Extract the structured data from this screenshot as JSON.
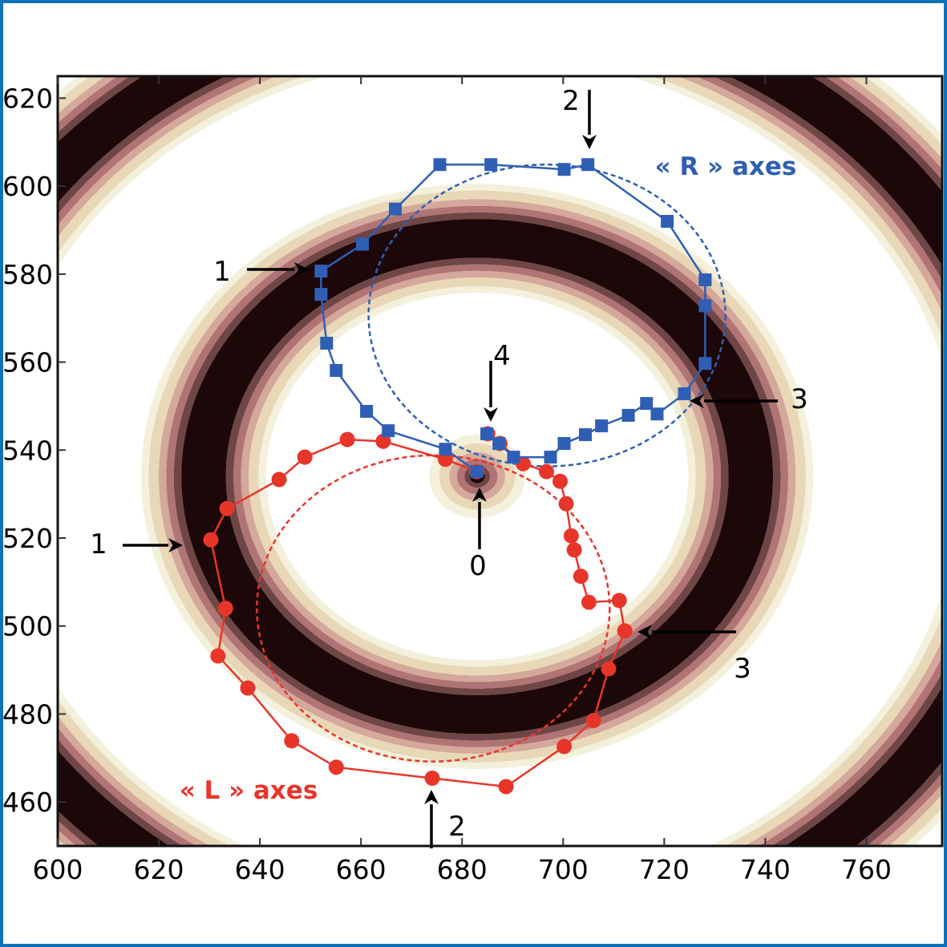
{
  "chart_data": {
    "type": "scatter",
    "title": "",
    "xlabel": "",
    "ylabel": "",
    "xlim": [
      600,
      775
    ],
    "ylim": [
      450,
      625
    ],
    "x_ticks": [
      600,
      620,
      640,
      660,
      680,
      700,
      720,
      740,
      760
    ],
    "y_ticks": [
      460,
      480,
      500,
      520,
      540,
      560,
      580,
      600,
      620
    ],
    "grid": false,
    "background": {
      "type": "contour-rings",
      "center": [
        683,
        534
      ],
      "dark_ring_radii": [
        0,
        54,
        108
      ],
      "colors": [
        "#1c0808",
        "#6e4646",
        "#b07474",
        "#d4a89a",
        "#e8d8b8",
        "#f3f0dc",
        "#ffffff"
      ]
    },
    "series": [
      {
        "name": "« R » axes",
        "color": "#2f5fb4",
        "marker": "square",
        "x": [
          682.9,
          676.7,
          665.4,
          661.1,
          655.1,
          653.2,
          652.1,
          652.1,
          660.3,
          666.8,
          675.6,
          685.7,
          700.2,
          704.9,
          720.6,
          728.1,
          728.1,
          728.1,
          724.0,
          718.6,
          716.5,
          712.9,
          707.6,
          704.4,
          700.2,
          697.5,
          690.2,
          687.3,
          684.9
        ],
        "y": [
          535.1,
          540.2,
          544.4,
          548.8,
          558.1,
          564.3,
          575.4,
          580.7,
          586.8,
          594.8,
          604.9,
          604.9,
          603.8,
          604.9,
          592.0,
          578.7,
          572.8,
          559.7,
          552.8,
          548.2,
          550.6,
          547.9,
          545.5,
          543.5,
          541.5,
          538.4,
          538.4,
          541.5,
          543.7
        ],
        "fit_circle": {
          "center": [
            696.8,
            570.6
          ],
          "radius": [
            35.3,
            34.3
          ],
          "style": "dashed"
        }
      },
      {
        "name": "« L » axes",
        "color": "#e8352a",
        "marker": "circle",
        "x": [
          682.9,
          676.7,
          664.4,
          657.3,
          648.9,
          643.8,
          633.5,
          630.3,
          633.2,
          631.7,
          637.6,
          646.3,
          655.1,
          674.1,
          688.7,
          700.2,
          706.0,
          709.0,
          712.2,
          711.1,
          705.1,
          703.5,
          702.2,
          701.6,
          700.6,
          699.4,
          696.7,
          692.1,
          687.5,
          685.1
        ],
        "y": [
          535.1,
          537.9,
          542.0,
          542.4,
          538.4,
          533.3,
          526.7,
          519.6,
          504.0,
          493.2,
          485.9,
          473.9,
          467.9,
          465.4,
          463.5,
          472.6,
          478.5,
          490.3,
          498.9,
          505.8,
          505.4,
          511.3,
          517.3,
          520.5,
          527.8,
          532.9,
          535.1,
          536.9,
          541.5,
          543.7
        ],
        "fit_circle": {
          "center": [
            674.3,
            504.0
          ],
          "radius": [
            34.9,
            34.8
          ],
          "style": "dashed"
        }
      }
    ],
    "annotations": [
      {
        "label": "1",
        "series": "« R » axes",
        "arrow": "right"
      },
      {
        "label": "2",
        "series": "« R » axes",
        "arrow": "down"
      },
      {
        "label": "3",
        "series": "« R » axes",
        "arrow": "left"
      },
      {
        "label": "4",
        "arrow": "down"
      },
      {
        "label": "0",
        "arrow": "up"
      },
      {
        "label": "1",
        "series": "« L » axes",
        "arrow": "right"
      },
      {
        "label": "2",
        "series": "« L » axes",
        "arrow": "up"
      },
      {
        "label": "3",
        "series": "« L » axes",
        "arrow": "left"
      }
    ]
  }
}
